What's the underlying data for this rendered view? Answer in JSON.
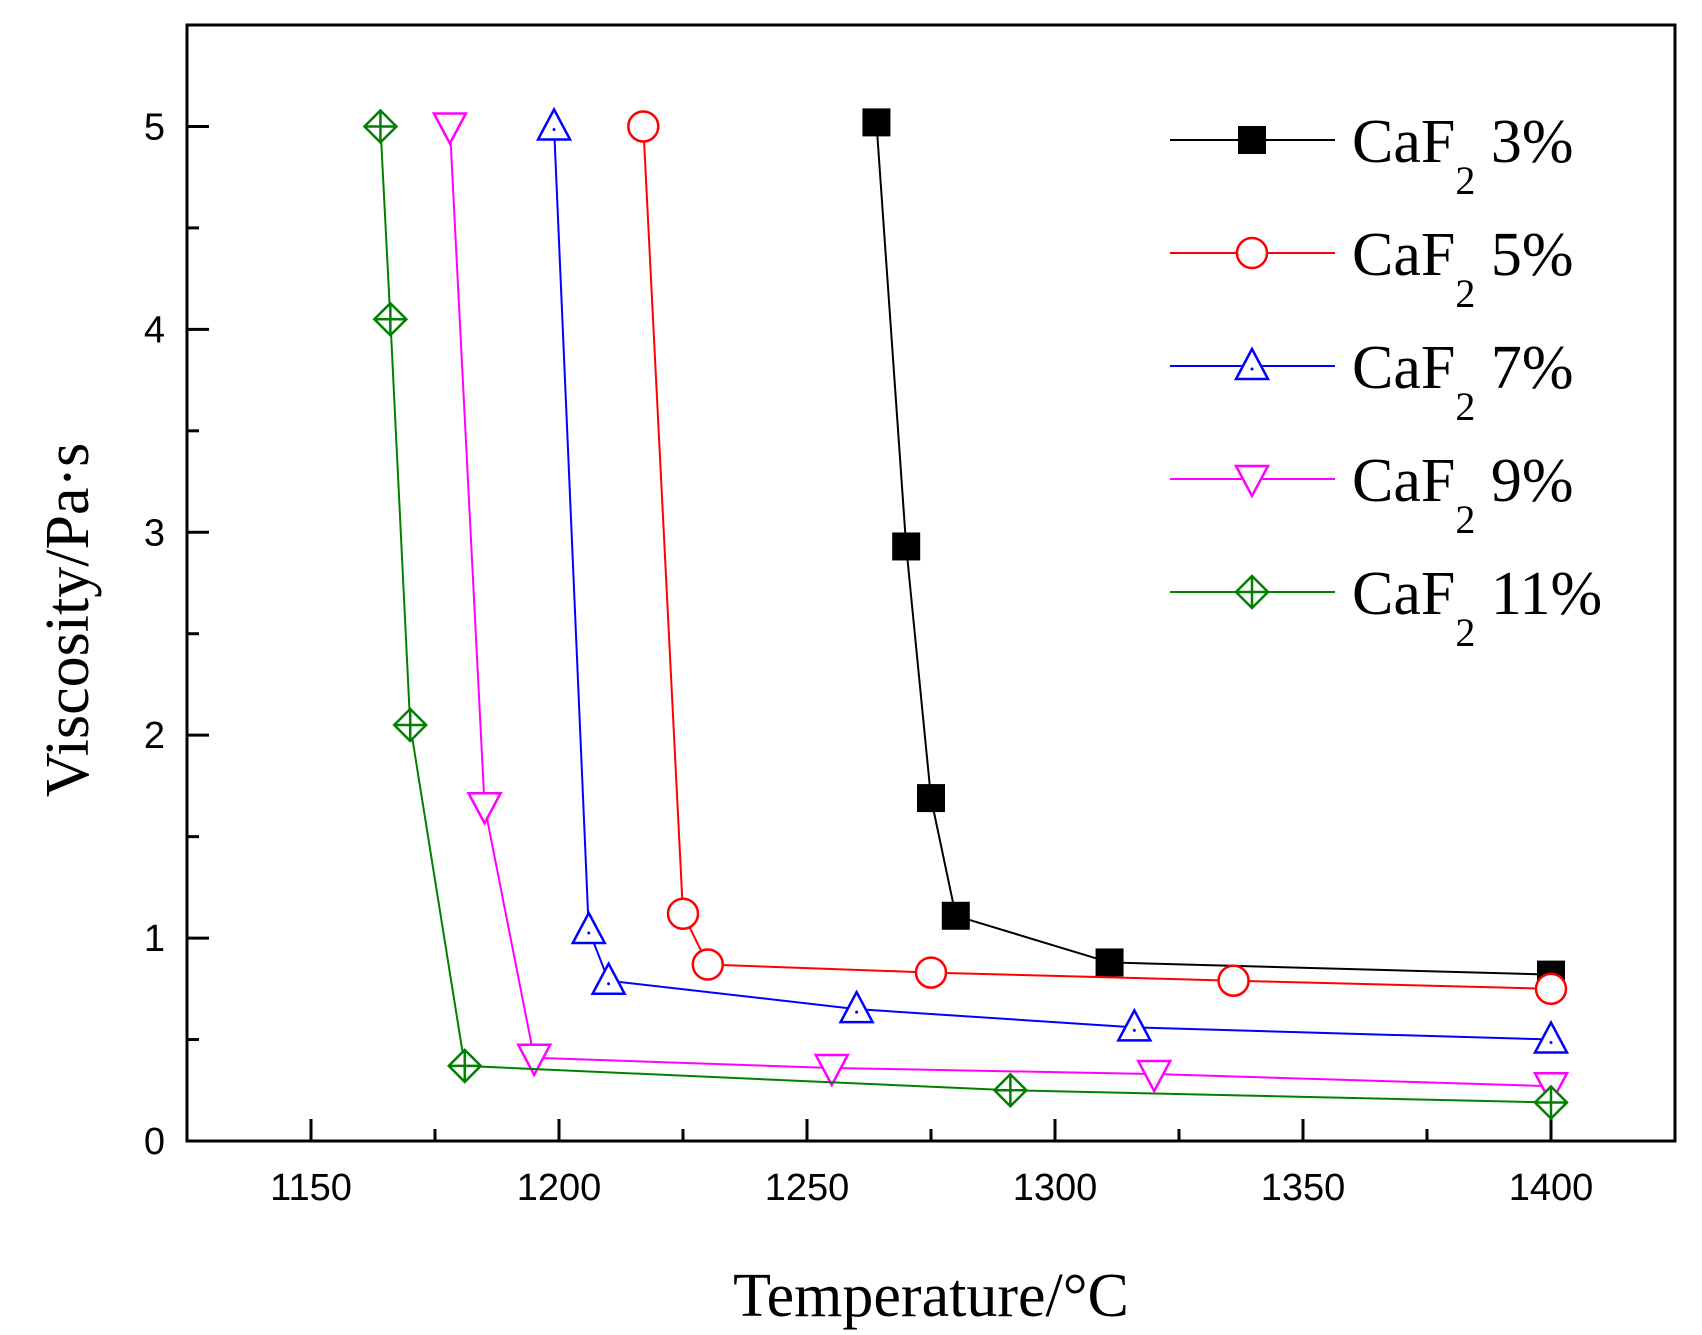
{
  "chart_data": {
    "type": "line",
    "title": "",
    "xlabel": "Temperature/°C",
    "ylabel": "Viscosity/Pa·s",
    "xlim": [
      1125,
      1425
    ],
    "ylim": [
      0,
      5.5
    ],
    "xticks": [
      1150,
      1200,
      1250,
      1300,
      1350,
      1400
    ],
    "yticks": [
      0,
      1,
      2,
      3,
      4,
      5
    ],
    "grid": false,
    "legend_position": "top-right",
    "series": [
      {
        "name": "CaF2 3%",
        "label_main": "CaF",
        "label_sub": "2",
        "label_tail": " 3%",
        "color": "#000000",
        "marker": "filled-square",
        "x": [
          1264,
          1270,
          1275,
          1280,
          1311,
          1400
        ],
        "y": [
          5.02,
          2.93,
          1.69,
          1.11,
          0.88,
          0.82
        ]
      },
      {
        "name": "CaF2 5%",
        "label_main": "CaF",
        "label_sub": "2",
        "label_tail": " 5%",
        "color": "#ff0000",
        "marker": "open-circle",
        "x": [
          1217,
          1225,
          1230,
          1275,
          1336,
          1400
        ],
        "y": [
          5.0,
          1.12,
          0.87,
          0.83,
          0.79,
          0.75
        ]
      },
      {
        "name": "CaF2 7%",
        "label_main": "CaF",
        "label_sub": "2",
        "label_tail": " 7%",
        "color": "#0000ff",
        "marker": "open-triangle-up",
        "x": [
          1199,
          1206,
          1210,
          1260,
          1316,
          1400
        ],
        "y": [
          5.0,
          1.04,
          0.79,
          0.65,
          0.56,
          0.5
        ]
      },
      {
        "name": "CaF2 9%",
        "label_main": "CaF",
        "label_sub": "2",
        "label_tail": " 9%",
        "color": "#ff00ff",
        "marker": "open-triangle-down",
        "x": [
          1178,
          1185,
          1195,
          1255,
          1320,
          1400
        ],
        "y": [
          5.0,
          1.65,
          0.41,
          0.36,
          0.33,
          0.27
        ]
      },
      {
        "name": "CaF2 11%",
        "label_main": "CaF",
        "label_sub": "2",
        "label_tail": " 11%",
        "color": "#008000",
        "marker": "crossed-diamond",
        "x": [
          1164,
          1166,
          1170,
          1181,
          1291,
          1400
        ],
        "y": [
          5.0,
          4.05,
          2.05,
          0.37,
          0.25,
          0.19
        ]
      }
    ]
  }
}
